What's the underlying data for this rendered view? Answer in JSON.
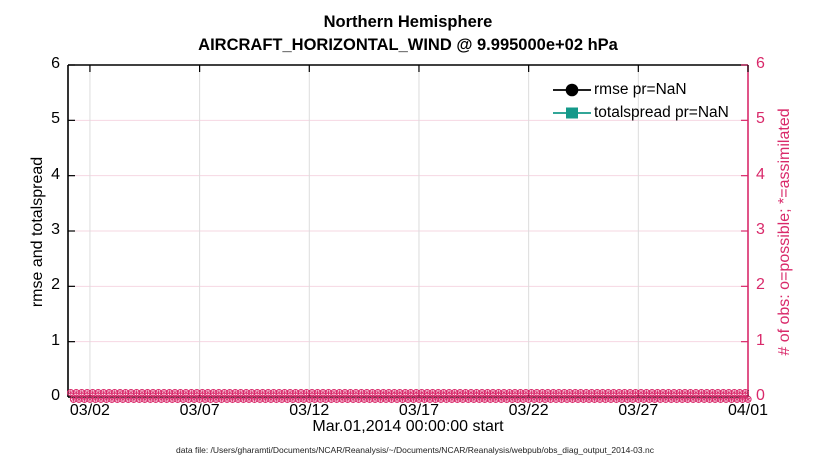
{
  "window": {
    "background": "#ffffff"
  },
  "title": {
    "line1": "Northern Hemisphere",
    "line2": "AIRCRAFT_HORIZONTAL_WIND @ 9.995000e+02 hPa"
  },
  "footer": {
    "text": "data file: /Users/gharamti/Documents/NCAR/Reanalysis/~/Documents/NCAR/Reanalysis/webpub/obs_diag_output_2014-03.nc"
  },
  "colors": {
    "accent_pink": "#d9296a",
    "grid_pink": "#f6d7e2",
    "grid_gray": "#dcdcdc",
    "teal": "#14998a",
    "black": "#000000",
    "background": "#ffffff"
  },
  "chart_data": {
    "type": "line",
    "title": "Northern Hemisphere",
    "subtitle": "AIRCRAFT_HORIZONTAL_WIND @ 9.995000e+02 hPa",
    "xlabel": "Mar.01,2014 00:00:00 start",
    "ylabel_left": "rmse and totalspread",
    "ylabel_right": "# of obs: o=possible; *=assimilated",
    "ylim_left": [
      0,
      6
    ],
    "ylim_right": [
      0,
      6
    ],
    "yticks": [
      "0",
      "1",
      "2",
      "3",
      "4",
      "5",
      "6"
    ],
    "x_domain_days": [
      0,
      31
    ],
    "x_start": "Mar.01,2014 00:00:00",
    "xticks": [
      {
        "day": 1,
        "label": "03/02"
      },
      {
        "day": 6,
        "label": "03/07"
      },
      {
        "day": 11,
        "label": "03/12"
      },
      {
        "day": 16,
        "label": "03/17"
      },
      {
        "day": 21,
        "label": "03/22"
      },
      {
        "day": 26,
        "label": "03/27"
      },
      {
        "day": 31,
        "label": "04/01"
      }
    ],
    "grid": true,
    "legend_position": "top-right-inside",
    "legend": [
      {
        "label": "rmse pr=NaN",
        "marker": "circle",
        "color": "#000000"
      },
      {
        "label": "totalspread pr=NaN",
        "marker": "square",
        "color": "#14998a"
      }
    ],
    "series": [
      {
        "name": "rmse",
        "pr": "NaN",
        "values": "NaN (no curve plotted)"
      },
      {
        "name": "totalspread",
        "pr": "NaN",
        "values": "NaN (no curve plotted)"
      }
    ],
    "obs_counts": {
      "description": "right-axis observation counts: o=possible, *=assimilated; every time bin equals 0",
      "value_all_bins": 0,
      "n_time_bins": 124,
      "interval_hours": 6,
      "marker_color": "#d9296a"
    }
  }
}
